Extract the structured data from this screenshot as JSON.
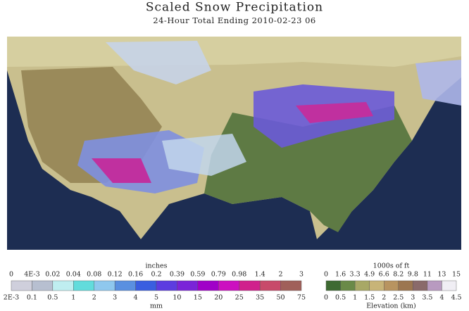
{
  "header": {
    "title": "Scaled Snow Precipitation",
    "subtitle": "24-Hour Total Ending 2010-02-23 06"
  },
  "legend_snow": {
    "top_unit": "inches",
    "top_labels": [
      "0",
      "4E-3",
      "0.02",
      "0.04",
      "0.08",
      "0.12",
      "0.16",
      "0.2",
      "0.39",
      "0.59",
      "0.79",
      "0.98",
      "1.4",
      "2",
      "3"
    ],
    "bottom_labels": [
      "2E-3",
      "0.1",
      "0.5",
      "1",
      "2",
      "3",
      "4",
      "5",
      "10",
      "15",
      "20",
      "25",
      "35",
      "50",
      "75"
    ],
    "bottom_unit": "mm"
  },
  "legend_elevation": {
    "top_unit": "1000s of ft",
    "top_labels": [
      "0",
      "1.6",
      "3.3",
      "4.9",
      "6.6",
      "8.2",
      "9.8",
      "11",
      "13",
      "15"
    ],
    "bottom_labels": [
      "0",
      "0.5",
      "1",
      "1.5",
      "2",
      "2.5",
      "3",
      "3.5",
      "4",
      "4.5"
    ],
    "bottom_unit": "Elevation (km)"
  }
}
